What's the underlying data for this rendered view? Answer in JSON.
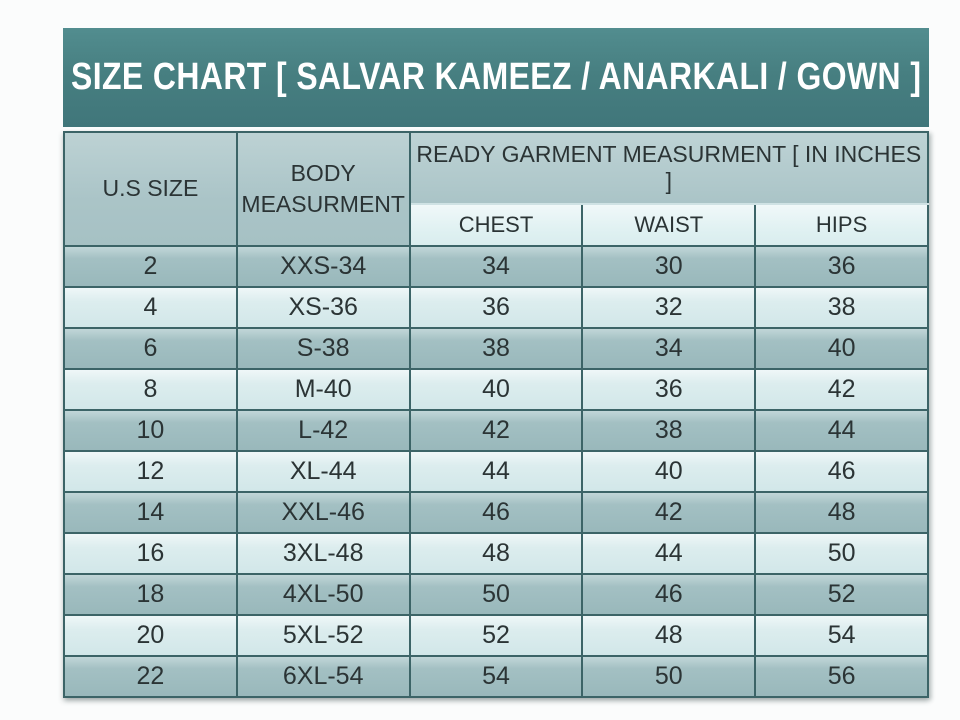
{
  "banner": {
    "title": "SIZE CHART [ SALVAR KAMEEZ / ANARKALI / GOWN ]"
  },
  "size_table": {
    "us_size_header": "U.S SIZE",
    "body_measurement_header": "BODY MEASURMENT",
    "garment_group_header": "READY GARMENT MEASURMENT [ IN INCHES ]",
    "sub_headers": {
      "chest": "CHEST",
      "waist": "WAIST",
      "hips": "HIPS"
    },
    "rows": [
      {
        "us_size": "2",
        "body": "XXS-34",
        "chest": "34",
        "waist": "30",
        "hips": "36"
      },
      {
        "us_size": "4",
        "body": "XS-36",
        "chest": "36",
        "waist": "32",
        "hips": "38"
      },
      {
        "us_size": "6",
        "body": "S-38",
        "chest": "38",
        "waist": "34",
        "hips": "40"
      },
      {
        "us_size": "8",
        "body": "M-40",
        "chest": "40",
        "waist": "36",
        "hips": "42"
      },
      {
        "us_size": "10",
        "body": "L-42",
        "chest": "42",
        "waist": "38",
        "hips": "44"
      },
      {
        "us_size": "12",
        "body": "XL-44",
        "chest": "44",
        "waist": "40",
        "hips": "46"
      },
      {
        "us_size": "14",
        "body": "XXL-46",
        "chest": "46",
        "waist": "42",
        "hips": "48"
      },
      {
        "us_size": "16",
        "body": "3XL-48",
        "chest": "48",
        "waist": "44",
        "hips": "50"
      },
      {
        "us_size": "18",
        "body": "4XL-50",
        "chest": "50",
        "waist": "46",
        "hips": "52"
      },
      {
        "us_size": "20",
        "body": "5XL-52",
        "chest": "52",
        "waist": "48",
        "hips": "54"
      },
      {
        "us_size": "22",
        "body": "6XL-54",
        "chest": "54",
        "waist": "50",
        "hips": "56"
      }
    ]
  },
  "colors": {
    "banner_teal": "#477f81",
    "banner_text": "#ffffff",
    "header_bg": "#aec6c9",
    "subheader_bg": "#e2f0f2",
    "row_dark": "#9fbdc0",
    "row_light": "#d8ebec",
    "border": "#3c6467",
    "text_dark": "#2b3435"
  }
}
